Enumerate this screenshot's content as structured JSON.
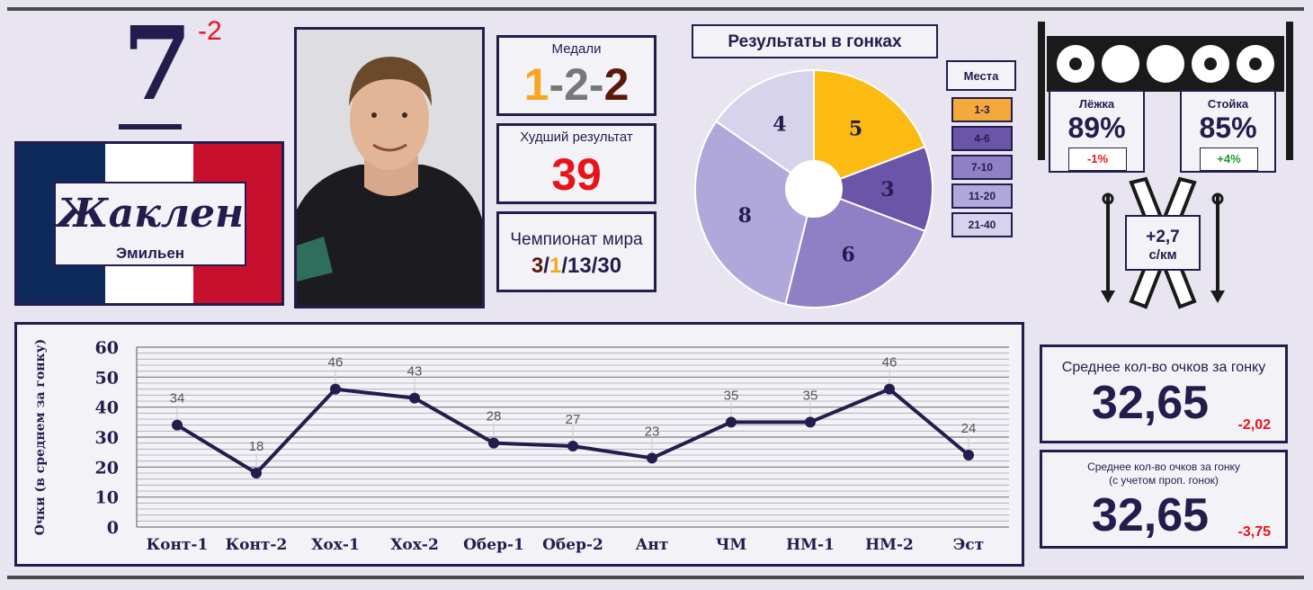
{
  "rank": {
    "value": "7",
    "change": "-2"
  },
  "athlete": {
    "surname": "Жаклен",
    "first_name": "Эмильен"
  },
  "flag_colors": {
    "blue": "#0e2a5c",
    "white": "#ffffff",
    "red": "#c8102e"
  },
  "medals": {
    "label": "Медали",
    "gold": "1",
    "sep1": "-",
    "silver": "2",
    "sep2": "-",
    "bronze": "2",
    "colors": {
      "gold": "#f5a623",
      "silver": "#777777",
      "bronze": "#5a1a0a"
    }
  },
  "worst": {
    "label": "Худший результат",
    "value": "39"
  },
  "worlds": {
    "label": "Чемпионат мира",
    "p1": "3",
    "s1": "/",
    "p2": "1",
    "s2": "/",
    "p3": "13",
    "s3": "/",
    "p4": "30"
  },
  "results": {
    "title": "Результаты в гонках",
    "legend_title": "Места",
    "legend": [
      {
        "label": "1-3",
        "color": "#f6a93b"
      },
      {
        "label": "4-6",
        "color": "#6a55a8"
      },
      {
        "label": "7-10",
        "color": "#8f80c6"
      },
      {
        "label": "11-20",
        "color": "#b0a8da"
      },
      {
        "label": "21-40",
        "color": "#d7d3ec"
      }
    ]
  },
  "shooting": {
    "prone": {
      "label": "Лёжка",
      "value": "89%",
      "change": "-1%"
    },
    "standing": {
      "label": "Стойка",
      "value": "85%",
      "change": "+4%"
    }
  },
  "ski": {
    "line1": "+2,7",
    "line2": "с/км"
  },
  "avg1": {
    "label": "Среднее кол-во очков за гонку",
    "value": "32,65",
    "change": "-2,02"
  },
  "avg2": {
    "label1": "Среднее кол-во очков за гонку",
    "label2": "(с учетом проп. гонок)",
    "value": "32,65",
    "change": "-3,75"
  },
  "chart_data": [
    {
      "type": "pie",
      "title": "Результаты в гонках",
      "categories": [
        "1-3",
        "4-6",
        "7-10",
        "11-20",
        "21-40"
      ],
      "values": [
        5,
        3,
        6,
        8,
        4
      ],
      "colors": [
        "#fbbb12",
        "#6a55a8",
        "#8f80c6",
        "#b0a8da",
        "#d7d3ec"
      ],
      "legend": "right"
    },
    {
      "type": "line",
      "categories": [
        "Конт-1",
        "Конт-2",
        "Хох-1",
        "Хох-2",
        "Обер-1",
        "Обер-2",
        "Ант",
        "ЧМ",
        "НМ-1",
        "НМ-2",
        "Эст"
      ],
      "values": [
        34,
        18,
        46,
        43,
        28,
        27,
        23,
        35,
        35,
        46,
        24
      ],
      "ylabel": "Очки (в среднем за гонку)",
      "xlabel": "",
      "ylim": [
        0,
        60
      ],
      "yticks": [
        0,
        10,
        20,
        30,
        40,
        50,
        60
      ],
      "grid": true
    }
  ]
}
